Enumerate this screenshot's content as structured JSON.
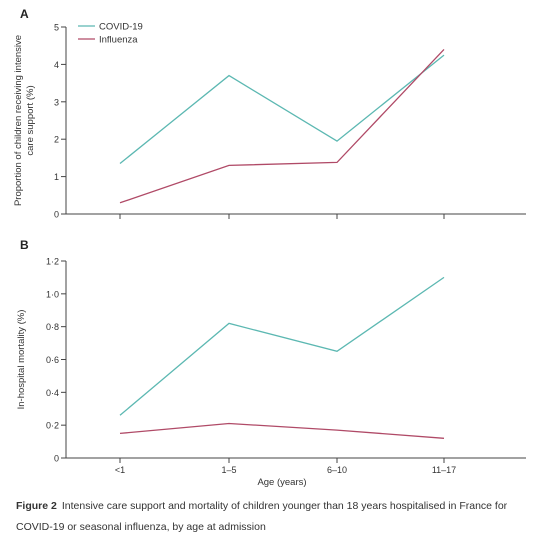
{
  "chart_data": [
    {
      "panel": "A",
      "type": "line",
      "categories": [
        "<1",
        "1–5",
        "6–10",
        "11–17"
      ],
      "ylabel": [
        "Proportion of children receiving intensive",
        "care support (%)"
      ],
      "ylim": [
        0,
        5
      ],
      "yticks": [
        "0",
        "1",
        "2",
        "3",
        "4",
        "5"
      ],
      "grid": false,
      "legend_position": "top-left",
      "series": [
        {
          "name": "COVID-19",
          "color": "#5cb8b2",
          "values": [
            1.35,
            3.7,
            1.95,
            4.25
          ]
        },
        {
          "name": "Influenza",
          "color": "#b04a67",
          "values": [
            0.3,
            1.3,
            1.38,
            4.4
          ]
        }
      ]
    },
    {
      "panel": "B",
      "type": "line",
      "categories": [
        "<1",
        "1–5",
        "6–10",
        "11–17"
      ],
      "xlabel": "Age (years)",
      "ylabel": "In-hospital mortality (%)",
      "ylim": [
        0,
        1.2
      ],
      "yticks": [
        "0",
        "0·2",
        "0·4",
        "0·6",
        "0·8",
        "1·0",
        "1·2"
      ],
      "grid": false,
      "series": [
        {
          "name": "COVID-19",
          "color": "#5cb8b2",
          "values": [
            0.26,
            0.82,
            0.65,
            1.1
          ]
        },
        {
          "name": "Influenza",
          "color": "#b04a67",
          "values": [
            0.15,
            0.21,
            0.17,
            0.12
          ]
        }
      ]
    }
  ],
  "caption": {
    "label": "Figure 2",
    "text": "Intensive care support and mortality of children younger than 18 years hospitalised in France for COVID-19 or seasonal influenza, by age at admission"
  }
}
